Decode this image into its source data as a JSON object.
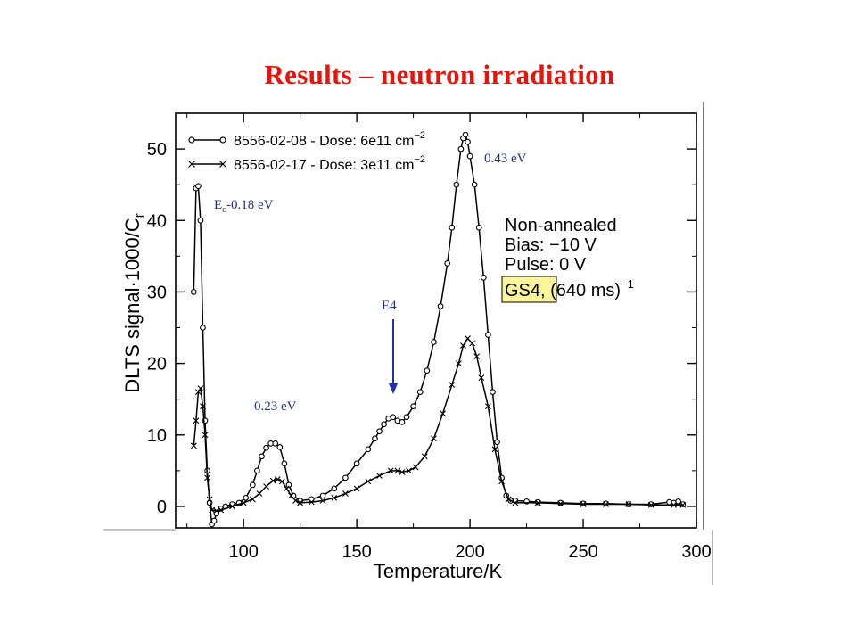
{
  "slide": {
    "title": "Results – neutron irradiation"
  },
  "chart_data": {
    "type": "line",
    "xlabel": "Temperature/K",
    "ylabel": "DLTS signal·1000/C",
    "ylabel_sub": "r",
    "xlim": [
      70,
      300
    ],
    "ylim": [
      -3,
      55
    ],
    "xticks": [
      100,
      150,
      200,
      250,
      300
    ],
    "yticks": [
      0,
      10,
      20,
      30,
      40,
      50
    ],
    "grid": false,
    "legend_position": "top-left",
    "series": [
      {
        "name": "8556-02-08 - Dose: 6e11 cm",
        "name_sup": "−2",
        "marker": "circle",
        "x": [
          78,
          79,
          80,
          81,
          82,
          83,
          84,
          85,
          86,
          87,
          88,
          90,
          92,
          95,
          98,
          101,
          104,
          106,
          108,
          110,
          112,
          114,
          116,
          118,
          120,
          122,
          125,
          130,
          135,
          140,
          145,
          150,
          155,
          158,
          160,
          162,
          164,
          166,
          168,
          170,
          172,
          175,
          178,
          181,
          184,
          187,
          190,
          192,
          194,
          196,
          197,
          198,
          199,
          200,
          202,
          204,
          206,
          208,
          210,
          212,
          214,
          216,
          218,
          220,
          225,
          230,
          240,
          250,
          260,
          270,
          280,
          288,
          290,
          292,
          294
        ],
        "y": [
          30,
          44.5,
          44.8,
          40,
          25,
          12,
          5,
          0.5,
          -2.5,
          -2,
          -1,
          -0.3,
          0,
          0.3,
          0.5,
          1.2,
          3,
          5,
          7,
          8.2,
          8.8,
          8.8,
          8.3,
          6,
          3,
          1.5,
          0.8,
          1,
          1.5,
          2.5,
          4,
          6,
          8,
          9.5,
          10.5,
          11.5,
          12.3,
          12.5,
          12,
          11.8,
          12.5,
          14,
          16,
          19,
          23,
          28,
          34,
          39,
          45,
          50,
          51.5,
          52,
          51,
          49,
          45,
          39,
          32,
          24,
          16,
          9,
          4,
          1.5,
          0.8,
          0.8,
          0.7,
          0.6,
          0.5,
          0.4,
          0.4,
          0.3,
          0.3,
          0.6,
          0.5,
          0.7,
          0.3
        ]
      },
      {
        "name": "8556-02-17 - Dose: 3e11 cm",
        "name_sup": "−2",
        "marker": "x",
        "x": [
          78,
          79,
          80,
          81,
          82,
          83,
          84,
          85,
          86,
          88,
          90,
          95,
          100,
          104,
          107,
          110,
          113,
          115,
          117,
          119,
          121,
          123,
          125,
          130,
          135,
          140,
          145,
          150,
          155,
          160,
          165,
          168,
          170,
          173,
          176,
          180,
          184,
          188,
          192,
          195,
          197,
          199,
          201,
          203,
          205,
          208,
          211,
          214,
          217,
          220,
          230,
          240,
          250,
          260,
          270,
          280,
          290,
          294
        ],
        "y": [
          8.5,
          12,
          16,
          16.5,
          14,
          10,
          4,
          1,
          -0.5,
          -0.6,
          -0.5,
          0,
          0.5,
          1,
          1.8,
          2.8,
          3.6,
          3.8,
          3.5,
          2.5,
          1.5,
          0.8,
          0.5,
          0.6,
          0.8,
          1.2,
          1.8,
          2.5,
          3.5,
          4.3,
          5,
          5,
          4.8,
          5,
          5.5,
          7,
          9.5,
          13,
          17,
          20,
          22.5,
          23.5,
          22.8,
          21,
          18,
          14,
          8,
          3.5,
          1,
          0.5,
          0.5,
          0.4,
          0.3,
          0.3,
          0.3,
          0.2,
          0.2,
          0.2
        ]
      }
    ],
    "inset_text": [
      "Non-annealed",
      "Bias: −10 V",
      "Pulse: 0 V"
    ],
    "inset_window": {
      "highlight": "GS4,",
      "rest": " (640 ms)",
      "sup": "−1"
    },
    "annotations": {
      "ec_main": "E",
      "ec_sub": "c",
      "ec_rest": "-0.18 eV",
      "peak_023": "0.23 eV",
      "peak_e4": "E4",
      "peak_043": "0.43 eV"
    },
    "colors": {
      "title": "#e8140c",
      "annotation": "#1f2f8f",
      "arrow": "#1f2fb0",
      "highlight": "#fbf59b",
      "plot": "#000000"
    }
  }
}
